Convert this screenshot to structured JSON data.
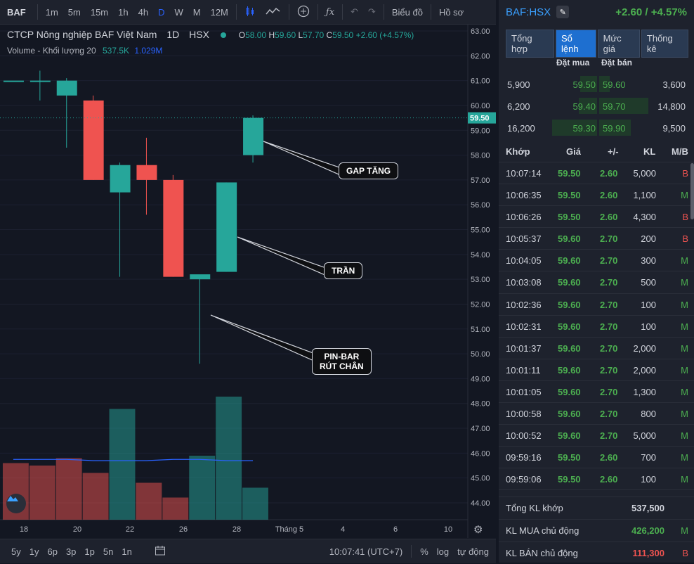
{
  "toolbar": {
    "symbol": "BAF",
    "timeframes": [
      "1m",
      "5m",
      "15m",
      "1h",
      "4h",
      "D",
      "W",
      "M",
      "12M"
    ],
    "active_timeframe": "D",
    "chart_menu": "Biểu đồ",
    "profile": "Hồ sơ"
  },
  "legend": {
    "title": "CTCP Nông nghiệp BAF Việt Nam",
    "interval": "1D",
    "exchange": "HSX",
    "ohlc": {
      "o": "58.00",
      "h": "59.60",
      "l": "57.70",
      "c": "59.50",
      "chg": "+2.60 (+4.57%)"
    },
    "volume_label": "Volume - Khối lượng 20",
    "volume_value": "537.5K",
    "volume_ma": "1.029M"
  },
  "annotations": {
    "gap": "GAP TĂNG",
    "tran": "TRẦN",
    "pinbar": "PIN-BAR\nRÚT CHÂN"
  },
  "colors": {
    "up": "#26a69a",
    "down": "#ef5350",
    "accent": "#2962ff",
    "buy": "#4caf50"
  },
  "chart_data": {
    "type": "candlestick",
    "ylim": [
      44,
      63
    ],
    "yticks": [
      "63.00",
      "62.00",
      "61.00",
      "60.00",
      "59.00",
      "58.00",
      "57.00",
      "56.00",
      "55.00",
      "54.00",
      "53.00",
      "52.00",
      "51.00",
      "50.00",
      "49.00",
      "48.00",
      "47.00",
      "46.00",
      "45.00",
      "44.00"
    ],
    "last_price": "59.50",
    "x_tick_labels": [
      "18",
      "20",
      "22",
      "26",
      "28",
      "Tháng 5",
      "4",
      "6",
      "10"
    ],
    "candles": [
      {
        "o": 61.0,
        "h": 61.0,
        "l": 61.0,
        "c": 61.0
      },
      {
        "o": 61.0,
        "h": 61.4,
        "l": 60.2,
        "c": 61.0
      },
      {
        "o": 60.4,
        "h": 61.1,
        "l": 58.3,
        "c": 61.0
      },
      {
        "o": 60.2,
        "h": 60.4,
        "l": 57.0,
        "c": 57.0
      },
      {
        "o": 56.5,
        "h": 57.7,
        "l": 53.1,
        "c": 57.6
      },
      {
        "o": 57.6,
        "h": 58.7,
        "l": 55.6,
        "c": 57.0
      },
      {
        "o": 57.0,
        "h": 57.2,
        "l": 53.1,
        "c": 53.1
      },
      {
        "o": 53.0,
        "h": 53.1,
        "l": 49.6,
        "c": 53.2
      },
      {
        "o": 53.3,
        "h": 56.9,
        "l": 53.3,
        "c": 56.9
      },
      {
        "o": 58.0,
        "h": 59.6,
        "l": 57.7,
        "c": 59.5
      }
    ],
    "volumes": [
      {
        "v": 0.46,
        "up": false
      },
      {
        "v": 0.44,
        "up": false
      },
      {
        "v": 0.5,
        "up": false
      },
      {
        "v": 0.38,
        "up": false
      },
      {
        "v": 0.9,
        "up": true
      },
      {
        "v": 0.3,
        "up": false
      },
      {
        "v": 0.18,
        "up": false
      },
      {
        "v": 0.52,
        "up": true
      },
      {
        "v": 1.0,
        "up": true
      },
      {
        "v": 0.26,
        "up": true
      }
    ],
    "volume_ma": [
      0.49,
      0.49,
      0.49,
      0.48,
      0.48,
      0.48,
      0.49,
      0.49,
      0.48,
      0.48
    ]
  },
  "bottombar": {
    "ranges": [
      "5y",
      "1y",
      "6p",
      "3p",
      "1p",
      "5n",
      "1n"
    ],
    "time": "10:07:41 (UTC+7)",
    "pct": "%",
    "log": "log",
    "auto": "tự động"
  },
  "panel": {
    "symbol": "BAF:HSX",
    "change": "+2.60 / +4.57%",
    "tabs": [
      "Tổng hợp",
      "Sổ lệnh",
      "Mức giá",
      "Thống kê"
    ],
    "active_tab": "Sổ lệnh",
    "book_bid_header": "Đặt mua",
    "book_ask_header": "Đặt bán",
    "book": [
      {
        "bid_vol": "5,900",
        "bid": "59.50",
        "ask": "59.60",
        "ask_vol": "3,600",
        "bid_w": 0.3,
        "ask_w": 0.15
      },
      {
        "bid_vol": "6,200",
        "bid": "59.40",
        "ask": "59.70",
        "ask_vol": "14,800",
        "bid_w": 0.32,
        "ask_w": 0.7
      },
      {
        "bid_vol": "16,200",
        "bid": "59.30",
        "ask": "59.90",
        "ask_vol": "9,500",
        "bid_w": 0.8,
        "ask_w": 0.45
      }
    ],
    "trade_headers": [
      "Khớp",
      "Giá",
      "+/-",
      "KL",
      "M/B"
    ],
    "trades": [
      {
        "t": "10:07:14",
        "p": "59.50",
        "c": "2.60",
        "v": "5,000",
        "s": "B"
      },
      {
        "t": "10:06:35",
        "p": "59.50",
        "c": "2.60",
        "v": "1,100",
        "s": "M"
      },
      {
        "t": "10:06:26",
        "p": "59.50",
        "c": "2.60",
        "v": "4,300",
        "s": "B"
      },
      {
        "t": "10:05:37",
        "p": "59.60",
        "c": "2.70",
        "v": "200",
        "s": "B"
      },
      {
        "t": "10:04:05",
        "p": "59.60",
        "c": "2.70",
        "v": "300",
        "s": "M"
      },
      {
        "t": "10:03:08",
        "p": "59.60",
        "c": "2.70",
        "v": "500",
        "s": "M"
      },
      {
        "t": "10:02:36",
        "p": "59.60",
        "c": "2.70",
        "v": "100",
        "s": "M"
      },
      {
        "t": "10:02:31",
        "p": "59.60",
        "c": "2.70",
        "v": "100",
        "s": "M"
      },
      {
        "t": "10:01:37",
        "p": "59.60",
        "c": "2.70",
        "v": "2,000",
        "s": "M"
      },
      {
        "t": "10:01:11",
        "p": "59.60",
        "c": "2.70",
        "v": "2,000",
        "s": "M"
      },
      {
        "t": "10:01:05",
        "p": "59.60",
        "c": "2.70",
        "v": "1,300",
        "s": "M"
      },
      {
        "t": "10:00:58",
        "p": "59.60",
        "c": "2.70",
        "v": "800",
        "s": "M"
      },
      {
        "t": "10:00:52",
        "p": "59.60",
        "c": "2.70",
        "v": "5,000",
        "s": "M"
      },
      {
        "t": "09:59:16",
        "p": "59.50",
        "c": "2.60",
        "v": "700",
        "s": "M"
      },
      {
        "t": "09:59:06",
        "p": "59.50",
        "c": "2.60",
        "v": "100",
        "s": "M"
      },
      {
        "t": "09:59:00",
        "p": "59.50",
        "c": "2.60",
        "v": "3,000",
        "s": "M"
      }
    ],
    "summary": [
      {
        "label": "Tổng KL khớp",
        "value": "537,500",
        "mark": "",
        "cls": ""
      },
      {
        "label": "KL MUA chủ động",
        "value": "426,200",
        "mark": "M",
        "cls": "mb-M"
      },
      {
        "label": "KL BÁN chủ động",
        "value": "111,300",
        "mark": "B",
        "cls": "mb-B"
      }
    ]
  }
}
